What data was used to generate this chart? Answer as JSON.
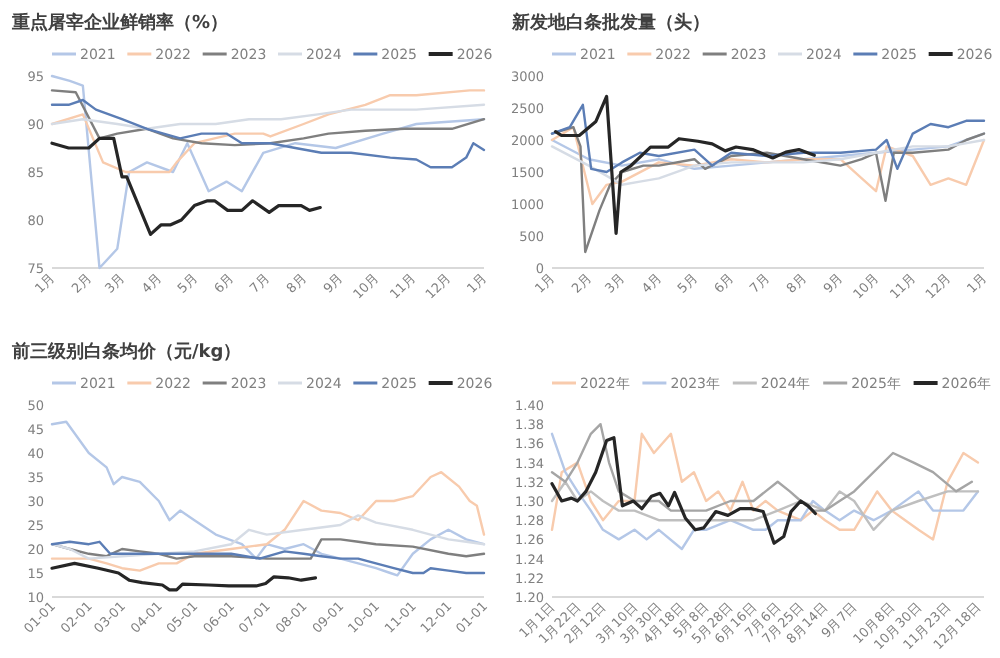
{
  "chart_data": [
    {
      "type": "line",
      "title": "重点屠宰企业鲜销率（%）",
      "legend": "top",
      "xlim": [
        "--01-01",
        "--12-31"
      ],
      "xticks": [
        {
          "value": "--01-01",
          "label": "1月"
        },
        {
          "value": "--02-01",
          "label": "2月"
        },
        {
          "value": "--03-01",
          "label": "3月"
        },
        {
          "value": "--04-01",
          "label": "4月"
        },
        {
          "value": "--05-01",
          "label": "5月"
        },
        {
          "value": "--06-01",
          "label": "6月"
        },
        {
          "value": "--07-01",
          "label": "7月"
        },
        {
          "value": "--08-01",
          "label": "8月"
        },
        {
          "value": "--09-01",
          "label": "9月"
        },
        {
          "value": "--10-01",
          "label": "10月"
        },
        {
          "value": "--11-01",
          "label": "11月"
        },
        {
          "value": "--12-01",
          "label": "12月"
        },
        {
          "value": "--12-31",
          "label": "1月"
        }
      ],
      "ylim": [
        75,
        95
      ],
      "yticks": [
        75,
        80,
        85,
        90,
        95
      ],
      "series": [
        {
          "name": "2021",
          "color": "#b4c7e7",
          "x": [
            "--01-01",
            "--01-16",
            "--01-27",
            "--02-10",
            "--02-25",
            "--03-07",
            "--03-22",
            "--04-13",
            "--04-25",
            "--05-13",
            "--05-28",
            "--06-10",
            "--06-28",
            "--07-25",
            "--08-28",
            "--10-07",
            "--11-04",
            "--12-31"
          ],
          "values": [
            95,
            94.5,
            94,
            75,
            77,
            85,
            86,
            85,
            88,
            83,
            84,
            83,
            87,
            88,
            87.5,
            89,
            90,
            90.5
          ]
        },
        {
          "name": "2022",
          "color": "#f8cbad",
          "x": [
            "--01-01",
            "--01-27",
            "--02-13",
            "--03-04",
            "--04-10",
            "--04-16",
            "--05-01",
            "--06-04",
            "--06-28",
            "--07-04",
            "--08-01",
            "--08-22",
            "--09-22",
            "--10-13",
            "--11-04",
            "--12-19",
            "--12-31"
          ],
          "values": [
            90,
            91,
            86,
            85,
            85,
            86,
            88,
            89,
            89,
            88.7,
            90,
            91,
            92,
            93,
            93,
            93.5,
            93.5
          ]
        },
        {
          "name": "2023",
          "color": "#7f7f7f",
          "x": [
            "--01-01",
            "--01-21",
            "--02-10",
            "--02-25",
            "--03-22",
            "--04-13",
            "--05-07",
            "--06-04",
            "--07-04",
            "--08-01",
            "--08-22",
            "--09-22",
            "--10-25",
            "--12-04",
            "--12-31"
          ],
          "values": [
            93.5,
            93.3,
            88.5,
            89,
            89.5,
            88.5,
            88,
            87.8,
            88,
            88.5,
            89,
            89.3,
            89.5,
            89.5,
            90.5
          ]
        },
        {
          "name": "2024",
          "color": "#d6dce5",
          "x": [
            "--01-01",
            "--01-27",
            "--02-25",
            "--03-22",
            "--04-19",
            "--05-19",
            "--06-16",
            "--07-13",
            "--08-13",
            "--09-10",
            "--10-07",
            "--11-04",
            "--12-31"
          ],
          "values": [
            90,
            90.5,
            90,
            89.5,
            90,
            90,
            90.5,
            90.5,
            91,
            91.5,
            91.5,
            91.5,
            92
          ]
        },
        {
          "name": "2025",
          "color": "#5b7db5",
          "x": [
            "--01-01",
            "--01-15",
            "--01-27",
            "--02-07",
            "--03-01",
            "--03-22",
            "--04-19",
            "--05-07",
            "--05-28",
            "--06-10",
            "--07-04",
            "--07-25",
            "--08-16",
            "--09-10",
            "--10-13",
            "--11-04",
            "--11-16",
            "--12-04",
            "--12-16",
            "--12-22",
            "--12-31"
          ],
          "values": [
            92,
            92,
            92.5,
            91.5,
            90.5,
            89.5,
            88.5,
            89,
            89,
            88,
            88,
            87.5,
            87,
            87,
            86.5,
            86.3,
            85.5,
            85.5,
            86.5,
            88,
            87.3
          ]
        },
        {
          "name": "2026",
          "color": "#262626",
          "x": [
            "--01-01",
            "--01-15",
            "--02-01",
            "--02-10",
            "--02-22",
            "--03-01",
            "--03-05",
            "--03-25",
            "--04-03",
            "--04-11",
            "--04-20",
            "--05-01",
            "--05-12",
            "--05-18",
            "--05-29",
            "--06-10",
            "--06-19",
            "--07-03",
            "--07-11",
            "--07-30",
            "--08-06",
            "--08-15"
          ],
          "values": [
            88,
            87.5,
            87.5,
            88.5,
            88.5,
            84.5,
            84.5,
            78.5,
            79.5,
            79.5,
            80,
            81.5,
            82,
            82,
            81,
            81,
            82,
            80.8,
            81.5,
            81.5,
            81,
            81.3
          ]
        }
      ]
    },
    {
      "type": "line",
      "title": "新发地白条批发量（头）",
      "legend": "top",
      "xlim": [
        "--01-01",
        "--12-31"
      ],
      "xticks": [
        {
          "value": "--01-01",
          "label": "1月"
        },
        {
          "value": "--02-01",
          "label": "2月"
        },
        {
          "value": "--03-01",
          "label": "3月"
        },
        {
          "value": "--04-01",
          "label": "4月"
        },
        {
          "value": "--05-01",
          "label": "5月"
        },
        {
          "value": "--06-01",
          "label": "6月"
        },
        {
          "value": "--07-01",
          "label": "7月"
        },
        {
          "value": "--08-01",
          "label": "8月"
        },
        {
          "value": "--09-01",
          "label": "9月"
        },
        {
          "value": "--10-01",
          "label": "10月"
        },
        {
          "value": "--11-01",
          "label": "11月"
        },
        {
          "value": "--12-01",
          "label": "12月"
        },
        {
          "value": "--12-31",
          "label": "1月"
        }
      ],
      "ylim": [
        0,
        3000
      ],
      "yticks": [
        0,
        500,
        1000,
        1500,
        2000,
        2500,
        3000
      ],
      "series": [
        {
          "name": "2021",
          "color": "#b4c7e7",
          "x": [
            "--01-01",
            "--02-01",
            "--03-01",
            "--04-01",
            "--05-01",
            "--06-01",
            "--07-01",
            "--08-01",
            "--09-01",
            "--10-01",
            "--11-01",
            "--12-01",
            "--12-31"
          ],
          "values": [
            2000,
            1700,
            1600,
            1700,
            1550,
            1600,
            1650,
            1700,
            1750,
            1800,
            1850,
            1900,
            2100
          ]
        },
        {
          "name": "2022",
          "color": "#f8cbad",
          "x": [
            "--01-01",
            "--01-19",
            "--02-04",
            "--02-16",
            "--03-01",
            "--04-01",
            "--05-01",
            "--06-01",
            "--07-01",
            "--08-01",
            "--09-01",
            "--09-19",
            "--10-01",
            "--10-10",
            "--11-01",
            "--11-16",
            "--12-01",
            "--12-16",
            "--12-31"
          ],
          "values": [
            2000,
            2200,
            1000,
            1300,
            1350,
            1650,
            1600,
            1700,
            1650,
            1700,
            1700,
            1400,
            1200,
            1900,
            1750,
            1300,
            1400,
            1300,
            2000
          ]
        },
        {
          "name": "2023",
          "color": "#7f7f7f",
          "x": [
            "--01-01",
            "--01-19",
            "--01-25",
            "--01-29",
            "--02-10",
            "--02-19",
            "--03-01",
            "--03-19",
            "--04-01",
            "--05-01",
            "--05-10",
            "--06-01",
            "--07-01",
            "--08-01",
            "--09-01",
            "--09-19",
            "--10-01",
            "--10-09",
            "--10-16",
            "--11-01",
            "--12-01",
            "--12-16",
            "--12-31"
          ],
          "values": [
            2100,
            2200,
            1900,
            250,
            900,
            1300,
            1500,
            1600,
            1600,
            1700,
            1550,
            1750,
            1800,
            1700,
            1600,
            1700,
            1800,
            1050,
            1800,
            1800,
            1850,
            2000,
            2100
          ]
        },
        {
          "name": "2024",
          "color": "#d6dce5",
          "x": [
            "--01-01",
            "--02-01",
            "--03-01",
            "--03-16",
            "--04-01",
            "--05-01",
            "--06-01",
            "--07-01",
            "--08-01",
            "--09-01",
            "--10-01",
            "--11-01",
            "--12-01",
            "--12-31"
          ],
          "values": [
            1900,
            1600,
            1300,
            1350,
            1400,
            1600,
            1650,
            1650,
            1650,
            1700,
            1800,
            1900,
            1900,
            2000
          ]
        },
        {
          "name": "2025",
          "color": "#5b7db5",
          "x": [
            "--01-01",
            "--01-16",
            "--01-27",
            "--02-03",
            "--02-16",
            "--03-01",
            "--03-16",
            "--04-01",
            "--05-01",
            "--05-16",
            "--06-01",
            "--07-01",
            "--08-01",
            "--09-01",
            "--10-01",
            "--10-10",
            "--10-19",
            "--11-01",
            "--11-16",
            "--12-01",
            "--12-16",
            "--12-31"
          ],
          "values": [
            2100,
            2200,
            2550,
            1550,
            1500,
            1650,
            1800,
            1750,
            1850,
            1600,
            1800,
            1750,
            1800,
            1800,
            1850,
            2000,
            1550,
            2100,
            2250,
            2200,
            2300,
            2300
          ]
        },
        {
          "name": "2026",
          "color": "#262626",
          "x": [
            "--01-04",
            "--01-09",
            "--01-24",
            "--02-07",
            "--02-16",
            "--02-24",
            "--02-28",
            "--03-08",
            "--03-25",
            "--04-09",
            "--04-18",
            "--05-04",
            "--05-16",
            "--05-27",
            "--06-05",
            "--06-19",
            "--07-06",
            "--07-17",
            "--07-28",
            "--08-10"
          ],
          "values": [
            2130,
            2070,
            2070,
            2290,
            2680,
            540,
            1500,
            1590,
            1890,
            1890,
            2020,
            1980,
            1940,
            1830,
            1890,
            1850,
            1720,
            1810,
            1850,
            1760
          ]
        }
      ]
    },
    {
      "type": "line",
      "title": "前三级别白条均价（元/kg）",
      "legend": "top",
      "xlim": [
        "--01-01",
        "--12-31"
      ],
      "xticks": [
        {
          "value": "--01-01",
          "label": "01-01"
        },
        {
          "value": "--02-01",
          "label": "02-01"
        },
        {
          "value": "--03-01",
          "label": "03-01"
        },
        {
          "value": "--04-01",
          "label": "04-01"
        },
        {
          "value": "--05-01",
          "label": "05-01"
        },
        {
          "value": "--06-01",
          "label": "06-01"
        },
        {
          "value": "--07-01",
          "label": "07-01"
        },
        {
          "value": "--08-01",
          "label": "08-01"
        },
        {
          "value": "--09-01",
          "label": "09-01"
        },
        {
          "value": "--10-01",
          "label": "10-01"
        },
        {
          "value": "--11-01",
          "label": "11-01"
        },
        {
          "value": "--12-01",
          "label": "12-01"
        },
        {
          "value": "--12-31",
          "label": "01-01"
        }
      ],
      "ylim": [
        10,
        50
      ],
      "yticks": [
        10,
        15,
        20,
        25,
        30,
        35,
        40,
        45,
        50
      ],
      "series": [
        {
          "name": "2021",
          "color": "#b4c7e7",
          "x": [
            "--01-01",
            "--01-13",
            "--02-01",
            "--02-16",
            "--02-22",
            "--03-01",
            "--03-16",
            "--04-01",
            "--04-10",
            "--04-19",
            "--05-01",
            "--05-19",
            "--06-10",
            "--06-22",
            "--07-01",
            "--07-16",
            "--08-01",
            "--08-16",
            "--09-01",
            "--09-16",
            "--10-01",
            "--10-13",
            "--10-19",
            "--11-01",
            "--11-16",
            "--12-01",
            "--12-16",
            "--12-31"
          ],
          "values": [
            46,
            46.5,
            40,
            37,
            33.5,
            35,
            34,
            30,
            26,
            28,
            26,
            23,
            21,
            18,
            21,
            20,
            21,
            19,
            18,
            17,
            16,
            15,
            14.5,
            19,
            22,
            24,
            22,
            21
          ]
        },
        {
          "name": "2022",
          "color": "#f8cbad",
          "x": [
            "--01-01",
            "--02-01",
            "--02-16",
            "--03-01",
            "--03-16",
            "--04-01",
            "--04-16",
            "--05-01",
            "--06-01",
            "--07-01",
            "--07-16",
            "--08-01",
            "--08-16",
            "--09-01",
            "--09-16",
            "--10-01",
            "--10-16",
            "--11-01",
            "--11-16",
            "--11-25",
            "--12-10",
            "--12-19",
            "--12-25",
            "--12-31"
          ],
          "values": [
            18,
            18,
            17,
            16,
            15.5,
            17,
            17,
            19,
            20,
            21,
            24,
            30,
            28,
            27.5,
            26,
            30,
            30,
            31,
            35,
            36,
            33,
            30,
            29,
            23
          ]
        },
        {
          "name": "2023",
          "color": "#7f7f7f",
          "x": [
            "--01-01",
            "--01-16",
            "--02-01",
            "--02-16",
            "--03-01",
            "--03-16",
            "--04-01",
            "--04-16",
            "--05-01",
            "--06-01",
            "--07-01",
            "--08-01",
            "--08-07",
            "--08-16",
            "--09-01",
            "--09-16",
            "--10-01",
            "--11-01",
            "--12-01",
            "--12-16",
            "--12-31"
          ],
          "values": [
            21,
            20,
            19,
            18.5,
            20,
            19.5,
            19,
            18,
            18.5,
            18.5,
            18,
            18,
            18,
            22,
            22,
            21.5,
            21,
            20.5,
            19,
            18.5,
            19
          ]
        },
        {
          "name": "2024",
          "color": "#d6dce5",
          "x": [
            "--01-01",
            "--01-16",
            "--02-01",
            "--03-01",
            "--04-01",
            "--05-01",
            "--06-01",
            "--06-16",
            "--07-01",
            "--08-01",
            "--09-01",
            "--09-16",
            "--10-01",
            "--11-01",
            "--11-16",
            "--12-01",
            "--12-16",
            "--12-31"
          ],
          "values": [
            21,
            20,
            18,
            18.5,
            19,
            19.5,
            21,
            24,
            23,
            24,
            25,
            27,
            25.5,
            24,
            23,
            22,
            21.5,
            21
          ]
        },
        {
          "name": "2025",
          "color": "#5b7db5",
          "x": [
            "--01-01",
            "--01-16",
            "--02-01",
            "--02-10",
            "--02-19",
            "--03-01",
            "--04-01",
            "--05-01",
            "--06-01",
            "--06-25",
            "--07-16",
            "--08-01",
            "--08-16",
            "--09-01",
            "--09-16",
            "--10-01",
            "--10-16",
            "--11-01",
            "--11-10",
            "--11-16",
            "--12-01",
            "--12-16",
            "--12-31"
          ],
          "values": [
            21,
            21.5,
            21,
            21.5,
            19,
            19,
            19,
            19,
            19,
            18,
            19.5,
            19,
            18.5,
            18,
            18,
            17,
            16,
            15,
            15,
            16,
            15.5,
            15,
            15
          ]
        },
        {
          "name": "2026",
          "color": "#262626",
          "x": [
            "--01-01",
            "--01-20",
            "--02-09",
            "--02-26",
            "--03-07",
            "--03-18",
            "--04-04",
            "--04-10",
            "--04-16",
            "--04-21",
            "--05-13",
            "--05-30",
            "--06-22",
            "--06-30",
            "--07-07",
            "--07-19",
            "--07-30",
            "--08-11"
          ],
          "values": [
            16,
            17,
            16,
            15,
            13.5,
            13,
            12.5,
            11.5,
            11.5,
            12.7,
            12.5,
            12.3,
            12.3,
            12.8,
            14.2,
            14,
            13.5,
            14
          ]
        }
      ]
    },
    {
      "type": "line",
      "legend": "top",
      "xlim": [
        "--01-01",
        "--12-23"
      ],
      "xticks": [
        {
          "value": "--01-01",
          "label": "1月1日"
        },
        {
          "value": "--01-22",
          "label": "1月22日"
        },
        {
          "value": "--02-12",
          "label": "2月12日"
        },
        {
          "value": "--03-10",
          "label": "3月10日"
        },
        {
          "value": "--03-30",
          "label": "3月30日"
        },
        {
          "value": "--04-18",
          "label": "4月18日"
        },
        {
          "value": "--05-08",
          "label": "5月8日"
        },
        {
          "value": "--05-28",
          "label": "5月28日"
        },
        {
          "value": "--06-16",
          "label": "6月16日"
        },
        {
          "value": "--07-06",
          "label": "7月6日"
        },
        {
          "value": "--07-25",
          "label": "7月25日"
        },
        {
          "value": "--08-14",
          "label": "8月14日"
        },
        {
          "value": "--09-07",
          "label": "9月7日"
        },
        {
          "value": "--10-08",
          "label": "10月8日"
        },
        {
          "value": "--10-30",
          "label": "10月30日"
        },
        {
          "value": "--11-23",
          "label": "11月23日"
        },
        {
          "value": "--12-18",
          "label": "12月18日"
        }
      ],
      "ylim": [
        1.2,
        1.4
      ],
      "yticks": [
        {
          "value": 1.2,
          "label": "1.20"
        },
        {
          "value": 1.22,
          "label": "1.22"
        },
        {
          "value": 1.24,
          "label": "1.24"
        },
        {
          "value": 1.26,
          "label": "1.26"
        },
        {
          "value": 1.28,
          "label": "1.28"
        },
        {
          "value": 1.3,
          "label": "1.30"
        },
        {
          "value": 1.32,
          "label": "1.32"
        },
        {
          "value": 1.34,
          "label": "1.34"
        },
        {
          "value": 1.36,
          "label": "1.36"
        },
        {
          "value": 1.38,
          "label": "1.38"
        },
        {
          "value": 1.4,
          "label": "1.40"
        }
      ],
      "series": [
        {
          "name": "2022年",
          "color": "#f8cbad",
          "x": [
            "--01-01",
            "--01-09",
            "--01-22",
            "--02-02",
            "--02-12",
            "--02-25",
            "--03-10",
            "--03-16",
            "--03-26",
            "--04-09",
            "--04-18",
            "--04-28",
            "--05-08",
            "--05-18",
            "--05-28",
            "--06-07",
            "--06-16",
            "--06-26",
            "--07-06",
            "--07-25",
            "--08-04",
            "--08-14",
            "--08-26",
            "--09-07",
            "--09-26",
            "--10-08",
            "--10-19",
            "--10-30",
            "--11-11",
            "--11-23",
            "--12-06",
            "--12-18"
          ],
          "values": [
            1.27,
            1.33,
            1.34,
            1.3,
            1.28,
            1.3,
            1.3,
            1.37,
            1.35,
            1.37,
            1.32,
            1.33,
            1.3,
            1.31,
            1.29,
            1.32,
            1.29,
            1.3,
            1.29,
            1.28,
            1.29,
            1.28,
            1.27,
            1.27,
            1.31,
            1.29,
            1.28,
            1.27,
            1.26,
            1.32,
            1.35,
            1.34
          ]
        },
        {
          "name": "2023年",
          "color": "#b4c7e7",
          "x": [
            "--01-01",
            "--01-12",
            "--01-22",
            "--02-02",
            "--02-12",
            "--02-25",
            "--03-10",
            "--03-20",
            "--03-30",
            "--04-18",
            "--04-28",
            "--05-08",
            "--05-28",
            "--06-16",
            "--06-26",
            "--07-06",
            "--07-25",
            "--08-04",
            "--08-14",
            "--08-26",
            "--09-07",
            "--09-23",
            "--10-08",
            "--10-30",
            "--11-11",
            "--11-23",
            "--12-06",
            "--12-18"
          ],
          "values": [
            1.37,
            1.33,
            1.31,
            1.29,
            1.27,
            1.26,
            1.27,
            1.26,
            1.27,
            1.25,
            1.27,
            1.27,
            1.28,
            1.27,
            1.27,
            1.28,
            1.28,
            1.3,
            1.29,
            1.28,
            1.29,
            1.28,
            1.29,
            1.31,
            1.29,
            1.29,
            1.29,
            1.31
          ]
        },
        {
          "name": "2024年",
          "color": "#bfbfbf",
          "x": [
            "--01-01",
            "--01-12",
            "--01-22",
            "--02-02",
            "--02-12",
            "--02-25",
            "--03-10",
            "--03-30",
            "--04-18",
            "--05-08",
            "--05-28",
            "--06-16",
            "--07-06",
            "--07-25",
            "--08-14",
            "--08-26",
            "--09-07",
            "--09-23",
            "--10-08",
            "--10-30",
            "--11-23",
            "--12-18"
          ],
          "values": [
            1.3,
            1.32,
            1.3,
            1.31,
            1.3,
            1.29,
            1.29,
            1.28,
            1.28,
            1.28,
            1.28,
            1.28,
            1.29,
            1.3,
            1.29,
            1.31,
            1.3,
            1.27,
            1.29,
            1.3,
            1.31,
            1.31
          ]
        },
        {
          "name": "2025年",
          "color": "#a5a5a5",
          "x": [
            "--01-01",
            "--01-12",
            "--01-22",
            "--02-02",
            "--02-10",
            "--02-17",
            "--02-25",
            "--03-10",
            "--03-20",
            "--03-30",
            "--04-09",
            "--04-18",
            "--05-08",
            "--05-28",
            "--06-16",
            "--06-26",
            "--07-06",
            "--07-16",
            "--07-25",
            "--08-04",
            "--08-14",
            "--08-26",
            "--09-07",
            "--10-09",
            "--10-26",
            "--11-11",
            "--11-30",
            "--12-13"
          ],
          "values": [
            1.33,
            1.32,
            1.34,
            1.37,
            1.38,
            1.34,
            1.31,
            1.3,
            1.3,
            1.3,
            1.29,
            1.29,
            1.29,
            1.3,
            1.3,
            1.31,
            1.32,
            1.31,
            1.3,
            1.29,
            1.29,
            1.3,
            1.31,
            1.35,
            1.34,
            1.33,
            1.31,
            1.32
          ]
        },
        {
          "name": "2026年",
          "color": "#262626",
          "x": [
            "--01-01",
            "--01-09",
            "--01-17",
            "--01-22",
            "--01-29",
            "--02-06",
            "--02-15",
            "--02-21",
            "--02-28",
            "--03-09",
            "--03-16",
            "--03-24",
            "--03-31",
            "--04-07",
            "--04-12",
            "--04-21",
            "--04-29",
            "--05-06",
            "--05-16",
            "--05-26",
            "--06-05",
            "--06-14",
            "--06-24",
            "--07-03",
            "--07-11",
            "--07-17",
            "--07-25",
            "--07-31",
            "--08-06"
          ],
          "values": [
            1.318,
            1.3,
            1.303,
            1.3,
            1.31,
            1.33,
            1.363,
            1.366,
            1.295,
            1.3,
            1.292,
            1.305,
            1.308,
            1.295,
            1.309,
            1.282,
            1.27,
            1.272,
            1.289,
            1.285,
            1.292,
            1.292,
            1.289,
            1.256,
            1.263,
            1.289,
            1.3,
            1.295,
            1.287
          ]
        }
      ]
    }
  ]
}
